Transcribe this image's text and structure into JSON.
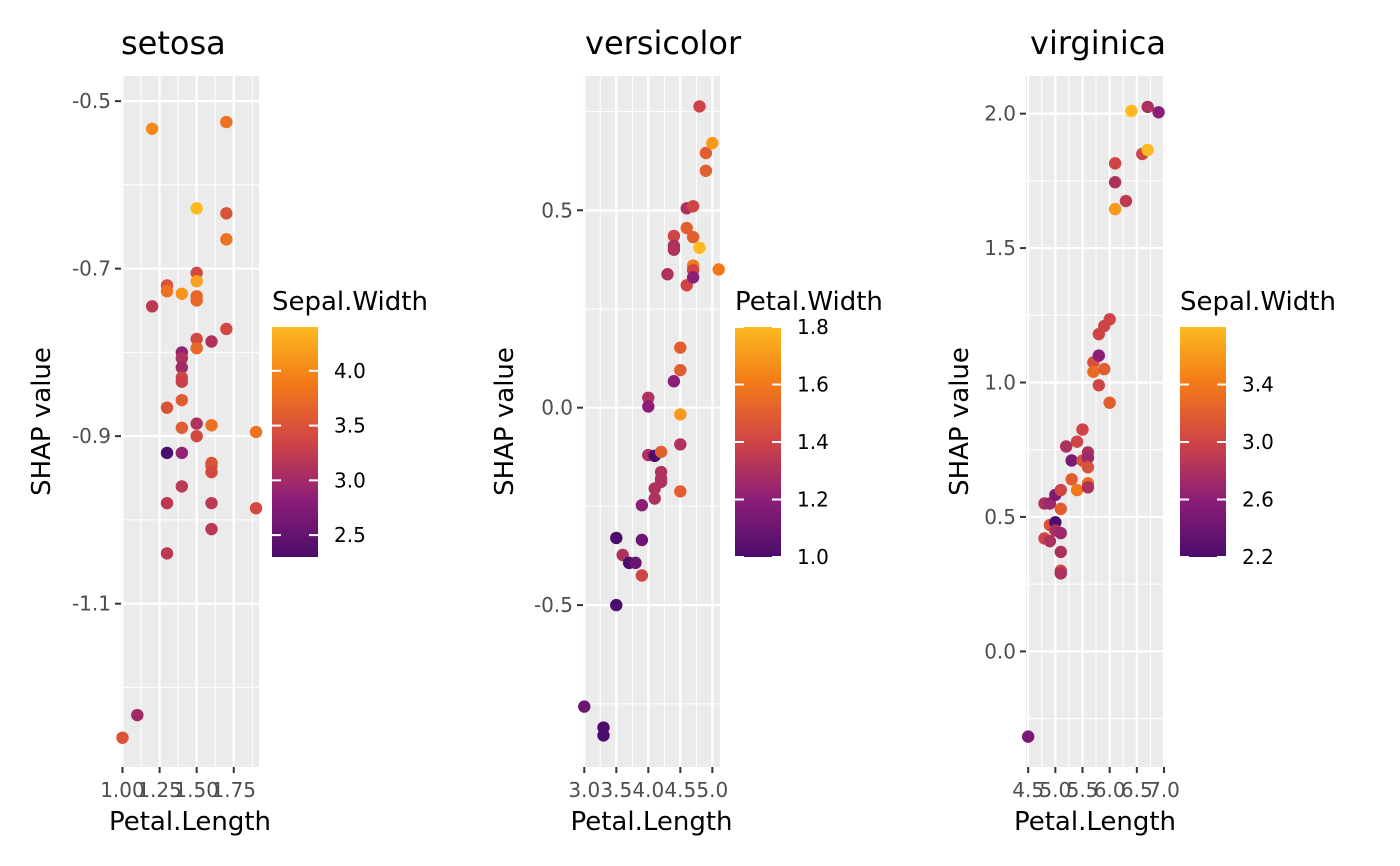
{
  "chart_data": [
    {
      "type": "scatter",
      "title": "setosa",
      "xlabel": "Petal.Length",
      "ylabel": "SHAP value",
      "xlim": [
        0.99,
        1.92
      ],
      "ylim": [
        -1.295,
        -0.47
      ],
      "xticks": [
        1.0,
        1.25,
        1.5,
        1.75
      ],
      "xtick_labels": [
        "1.00",
        "1.25",
        "1.50",
        "1.75"
      ],
      "yticks": [
        -0.5,
        -0.7,
        -0.9,
        -1.1
      ],
      "ytick_labels": [
        "-0.5",
        "-0.7",
        "-0.9",
        "-1.1"
      ],
      "legend_title": "Sepal.Width",
      "legend_range": [
        2.3,
        4.4
      ],
      "legend_ticks": [
        2.5,
        3.0,
        3.5,
        4.0
      ],
      "legend_tick_labels": [
        "2.5",
        "3.0",
        "3.5",
        "4.0"
      ],
      "points": [
        {
          "x": 1.0,
          "y": -1.26,
          "c": 3.5
        },
        {
          "x": 1.1,
          "y": -1.233,
          "c": 3.0
        },
        {
          "x": 1.2,
          "y": -0.533,
          "c": 4.0
        },
        {
          "x": 1.2,
          "y": -0.745,
          "c": 3.2
        },
        {
          "x": 1.3,
          "y": -0.72,
          "c": 3.5
        },
        {
          "x": 1.3,
          "y": -0.727,
          "c": 3.8
        },
        {
          "x": 1.3,
          "y": -0.866,
          "c": 3.5
        },
        {
          "x": 1.3,
          "y": -0.92,
          "c": 2.3
        },
        {
          "x": 1.3,
          "y": -0.98,
          "c": 3.2
        },
        {
          "x": 1.3,
          "y": -1.04,
          "c": 3.2
        },
        {
          "x": 1.4,
          "y": -0.73,
          "c": 4.1
        },
        {
          "x": 1.4,
          "y": -0.8,
          "c": 2.9
        },
        {
          "x": 1.4,
          "y": -0.807,
          "c": 3.1
        },
        {
          "x": 1.4,
          "y": -0.818,
          "c": 3.0
        },
        {
          "x": 1.4,
          "y": -0.83,
          "c": 3.4
        },
        {
          "x": 1.4,
          "y": -0.835,
          "c": 3.3
        },
        {
          "x": 1.4,
          "y": -0.857,
          "c": 3.6
        },
        {
          "x": 1.4,
          "y": -0.89,
          "c": 3.6
        },
        {
          "x": 1.4,
          "y": -0.92,
          "c": 2.9
        },
        {
          "x": 1.4,
          "y": -0.96,
          "c": 3.2
        },
        {
          "x": 1.5,
          "y": -0.628,
          "c": 4.4
        },
        {
          "x": 1.5,
          "y": -0.705,
          "c": 3.4
        },
        {
          "x": 1.5,
          "y": -0.715,
          "c": 4.2
        },
        {
          "x": 1.5,
          "y": -0.733,
          "c": 3.7
        },
        {
          "x": 1.5,
          "y": -0.738,
          "c": 3.7
        },
        {
          "x": 1.5,
          "y": -0.784,
          "c": 3.4
        },
        {
          "x": 1.5,
          "y": -0.795,
          "c": 3.7
        },
        {
          "x": 1.5,
          "y": -0.885,
          "c": 3.1
        },
        {
          "x": 1.5,
          "y": -0.9,
          "c": 3.4
        },
        {
          "x": 1.6,
          "y": -0.787,
          "c": 3.1
        },
        {
          "x": 1.6,
          "y": -0.887,
          "c": 3.8
        },
        {
          "x": 1.6,
          "y": -0.932,
          "c": 3.5
        },
        {
          "x": 1.6,
          "y": -0.936,
          "c": 3.5
        },
        {
          "x": 1.6,
          "y": -0.943,
          "c": 3.4
        },
        {
          "x": 1.6,
          "y": -0.98,
          "c": 3.2
        },
        {
          "x": 1.6,
          "y": -1.011,
          "c": 3.2
        },
        {
          "x": 1.7,
          "y": -0.525,
          "c": 3.8
        },
        {
          "x": 1.7,
          "y": -0.634,
          "c": 3.5
        },
        {
          "x": 1.7,
          "y": -0.665,
          "c": 3.8
        },
        {
          "x": 1.7,
          "y": -0.772,
          "c": 3.4
        },
        {
          "x": 1.9,
          "y": -0.895,
          "c": 3.8
        },
        {
          "x": 1.9,
          "y": -0.986,
          "c": 3.4
        }
      ]
    },
    {
      "type": "scatter",
      "title": "versicolor",
      "xlabel": "Petal.Length",
      "ylabel": "SHAP value",
      "xlim": [
        2.98,
        5.12
      ],
      "ylim": [
        -0.91,
        0.84
      ],
      "xticks": [
        3.0,
        3.5,
        4.0,
        4.5,
        5.0
      ],
      "xtick_labels": [
        "3.0",
        "3.5",
        "4.0",
        "4.5",
        "5.0"
      ],
      "yticks": [
        0.5,
        0.0,
        -0.5
      ],
      "ytick_labels": [
        "0.5",
        "0.0",
        "-0.5"
      ],
      "legend_title": "Petal.Width",
      "legend_range": [
        1.0,
        1.8
      ],
      "legend_ticks": [
        1.0,
        1.2,
        1.4,
        1.6,
        1.8
      ],
      "legend_tick_labels": [
        "1.0",
        "1.2",
        "1.4",
        "1.6",
        "1.8"
      ],
      "points": [
        {
          "x": 3.0,
          "y": -0.757,
          "c": 1.1
        },
        {
          "x": 3.3,
          "y": -0.81,
          "c": 1.0
        },
        {
          "x": 3.3,
          "y": -0.83,
          "c": 1.0
        },
        {
          "x": 3.5,
          "y": -0.33,
          "c": 1.0
        },
        {
          "x": 3.5,
          "y": -0.5,
          "c": 1.0
        },
        {
          "x": 3.6,
          "y": -0.373,
          "c": 1.3
        },
        {
          "x": 3.7,
          "y": -0.393,
          "c": 1.0
        },
        {
          "x": 3.8,
          "y": -0.393,
          "c": 1.1
        },
        {
          "x": 3.9,
          "y": -0.335,
          "c": 1.1
        },
        {
          "x": 3.9,
          "y": -0.425,
          "c": 1.4
        },
        {
          "x": 3.9,
          "y": -0.247,
          "c": 1.2
        },
        {
          "x": 4.0,
          "y": 0.025,
          "c": 1.3
        },
        {
          "x": 4.0,
          "y": 0.003,
          "c": 1.2
        },
        {
          "x": 4.0,
          "y": -0.12,
          "c": 1.3
        },
        {
          "x": 4.1,
          "y": -0.122,
          "c": 1.0
        },
        {
          "x": 4.1,
          "y": -0.205,
          "c": 1.3
        },
        {
          "x": 4.1,
          "y": -0.23,
          "c": 1.3
        },
        {
          "x": 4.2,
          "y": -0.112,
          "c": 1.5
        },
        {
          "x": 4.2,
          "y": -0.163,
          "c": 1.3
        },
        {
          "x": 4.2,
          "y": -0.18,
          "c": 1.3
        },
        {
          "x": 4.2,
          "y": -0.188,
          "c": 1.3
        },
        {
          "x": 4.3,
          "y": 0.338,
          "c": 1.3
        },
        {
          "x": 4.4,
          "y": 0.435,
          "c": 1.4
        },
        {
          "x": 4.4,
          "y": 0.41,
          "c": 1.3
        },
        {
          "x": 4.4,
          "y": 0.4,
          "c": 1.3
        },
        {
          "x": 4.4,
          "y": 0.067,
          "c": 1.2
        },
        {
          "x": 4.5,
          "y": 0.152,
          "c": 1.5
        },
        {
          "x": 4.5,
          "y": 0.095,
          "c": 1.5
        },
        {
          "x": 4.5,
          "y": -0.017,
          "c": 1.7
        },
        {
          "x": 4.5,
          "y": -0.093,
          "c": 1.3
        },
        {
          "x": 4.5,
          "y": -0.212,
          "c": 1.5
        },
        {
          "x": 4.6,
          "y": 0.505,
          "c": 1.3
        },
        {
          "x": 4.6,
          "y": 0.455,
          "c": 1.5
        },
        {
          "x": 4.6,
          "y": 0.31,
          "c": 1.4
        },
        {
          "x": 4.7,
          "y": 0.51,
          "c": 1.4
        },
        {
          "x": 4.7,
          "y": 0.432,
          "c": 1.5
        },
        {
          "x": 4.7,
          "y": 0.36,
          "c": 1.6
        },
        {
          "x": 4.7,
          "y": 0.348,
          "c": 1.4
        },
        {
          "x": 4.7,
          "y": 0.33,
          "c": 1.2
        },
        {
          "x": 4.8,
          "y": 0.763,
          "c": 1.4
        },
        {
          "x": 4.8,
          "y": 0.405,
          "c": 1.8
        },
        {
          "x": 4.9,
          "y": 0.645,
          "c": 1.5
        },
        {
          "x": 4.9,
          "y": 0.6,
          "c": 1.5
        },
        {
          "x": 5.0,
          "y": 0.67,
          "c": 1.7
        },
        {
          "x": 5.1,
          "y": 0.35,
          "c": 1.6
        }
      ]
    },
    {
      "type": "scatter",
      "title": "virginica",
      "xlabel": "Petal.Length",
      "ylabel": "SHAP value",
      "xlim": [
        4.46,
        7.0
      ],
      "ylim": [
        -0.43,
        2.14
      ],
      "xticks": [
        4.5,
        5.0,
        5.5,
        6.0,
        6.5,
        7.0
      ],
      "xtick_labels": [
        "4.5",
        "5.0",
        "5.5",
        "6.0",
        "6.5",
        "7.0"
      ],
      "yticks": [
        2.0,
        1.5,
        1.0,
        0.5,
        0.0
      ],
      "ytick_labels": [
        "2.0",
        "1.5",
        "1.0",
        "0.5",
        "0.0"
      ],
      "legend_title": "Sepal.Width",
      "legend_range": [
        2.2,
        3.8
      ],
      "legend_ticks": [
        2.2,
        2.6,
        3.0,
        3.4
      ],
      "legend_tick_labels": [
        "2.2",
        "2.6",
        "3.0",
        "3.4"
      ],
      "points": [
        {
          "x": 4.5,
          "y": -0.317,
          "c": 2.5
        },
        {
          "x": 4.8,
          "y": 0.55,
          "c": 2.8
        },
        {
          "x": 4.8,
          "y": 0.42,
          "c": 3.0
        },
        {
          "x": 4.9,
          "y": 0.55,
          "c": 2.7
        },
        {
          "x": 4.9,
          "y": 0.47,
          "c": 3.1
        },
        {
          "x": 4.9,
          "y": 0.41,
          "c": 2.8
        },
        {
          "x": 5.0,
          "y": 0.582,
          "c": 2.5
        },
        {
          "x": 5.0,
          "y": 0.48,
          "c": 2.2
        },
        {
          "x": 5.0,
          "y": 0.45,
          "c": 2.8
        },
        {
          "x": 5.1,
          "y": 0.6,
          "c": 3.0
        },
        {
          "x": 5.1,
          "y": 0.53,
          "c": 3.2
        },
        {
          "x": 5.1,
          "y": 0.44,
          "c": 2.7
        },
        {
          "x": 5.1,
          "y": 0.37,
          "c": 2.8
        },
        {
          "x": 5.1,
          "y": 0.3,
          "c": 3.0
        },
        {
          "x": 5.1,
          "y": 0.29,
          "c": 2.8
        },
        {
          "x": 5.2,
          "y": 0.762,
          "c": 2.8
        },
        {
          "x": 5.3,
          "y": 0.71,
          "c": 2.5
        },
        {
          "x": 5.3,
          "y": 0.64,
          "c": 3.2
        },
        {
          "x": 5.4,
          "y": 0.78,
          "c": 3.0
        },
        {
          "x": 5.4,
          "y": 0.6,
          "c": 3.4
        },
        {
          "x": 5.5,
          "y": 0.825,
          "c": 3.0
        },
        {
          "x": 5.5,
          "y": 0.71,
          "c": 3.1
        },
        {
          "x": 5.6,
          "y": 0.74,
          "c": 2.8
        },
        {
          "x": 5.6,
          "y": 0.72,
          "c": 2.7
        },
        {
          "x": 5.6,
          "y": 0.685,
          "c": 3.1
        },
        {
          "x": 5.6,
          "y": 0.625,
          "c": 3.3
        },
        {
          "x": 5.6,
          "y": 0.61,
          "c": 2.8
        },
        {
          "x": 5.7,
          "y": 1.075,
          "c": 3.1
        },
        {
          "x": 5.7,
          "y": 1.04,
          "c": 3.3
        },
        {
          "x": 5.8,
          "y": 1.18,
          "c": 3.0
        },
        {
          "x": 5.8,
          "y": 1.1,
          "c": 2.6
        },
        {
          "x": 5.8,
          "y": 0.99,
          "c": 3.0
        },
        {
          "x": 5.9,
          "y": 1.21,
          "c": 3.0
        },
        {
          "x": 5.9,
          "y": 1.05,
          "c": 3.2
        },
        {
          "x": 6.0,
          "y": 1.235,
          "c": 3.0
        },
        {
          "x": 6.0,
          "y": 0.925,
          "c": 3.2
        },
        {
          "x": 6.1,
          "y": 1.815,
          "c": 3.0
        },
        {
          "x": 6.1,
          "y": 1.745,
          "c": 2.8
        },
        {
          "x": 6.1,
          "y": 1.645,
          "c": 3.6
        },
        {
          "x": 6.3,
          "y": 1.675,
          "c": 2.9
        },
        {
          "x": 6.4,
          "y": 2.01,
          "c": 3.8
        },
        {
          "x": 6.6,
          "y": 1.85,
          "c": 3.0
        },
        {
          "x": 6.7,
          "y": 2.025,
          "c": 2.8
        },
        {
          "x": 6.7,
          "y": 1.865,
          "c": 3.8
        },
        {
          "x": 6.9,
          "y": 2.005,
          "c": 2.6
        }
      ]
    }
  ]
}
